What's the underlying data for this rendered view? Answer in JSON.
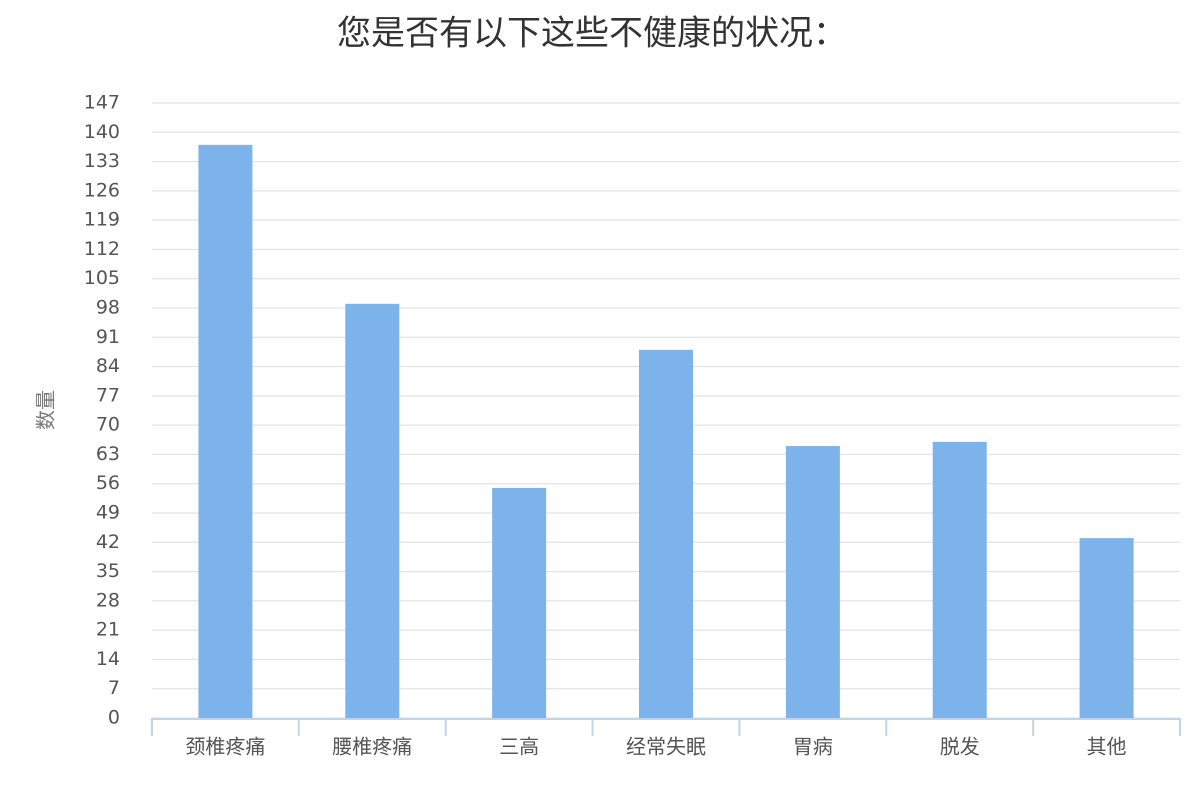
{
  "chart_data": {
    "type": "bar",
    "title": "您是否有以下这些不健康的状况：",
    "y_label": "数量",
    "categories": [
      "颈椎疼痛",
      "腰椎疼痛",
      "三高",
      "经常失眠",
      "胃病",
      "脱发",
      "其他"
    ],
    "values": [
      137,
      99,
      55,
      88,
      65,
      66,
      43
    ],
    "color": "#7cb3ea",
    "ylim": [
      0,
      147
    ],
    "yticks": [
      0,
      7,
      14,
      21,
      28,
      35,
      42,
      49,
      56,
      63,
      70,
      77,
      84,
      91,
      98,
      105,
      112,
      119,
      126,
      133,
      140,
      147
    ],
    "grid": true
  }
}
